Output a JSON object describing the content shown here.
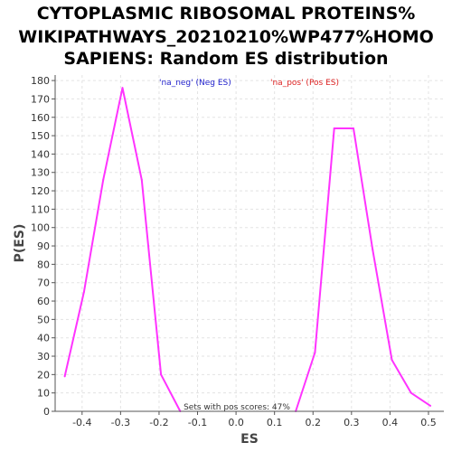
{
  "chart_data": {
    "type": "line",
    "title_lines": [
      "CYTOPLASMIC RIBOSOMAL PROTEINS%",
      "WIKIPATHWAYS_20210210%WP477%HOMO",
      "SAPIENS: Random ES distribution"
    ],
    "xlabel": "ES",
    "ylabel": "P(ES)",
    "xlim": [
      -0.47,
      0.54
    ],
    "ylim": [
      0,
      183
    ],
    "x_ticks": [
      -0.4,
      -0.3,
      -0.2,
      -0.1,
      0.0,
      0.1,
      0.2,
      0.3,
      0.4,
      0.5
    ],
    "x_tick_labels": [
      "-0.4",
      "-0.3",
      "-0.2",
      "-0.1",
      "0.0",
      "0.1",
      "0.2",
      "0.3",
      "0.4",
      "0.5"
    ],
    "y_ticks": [
      0,
      10,
      20,
      30,
      40,
      50,
      60,
      70,
      80,
      90,
      100,
      110,
      120,
      130,
      140,
      150,
      160,
      170,
      180
    ],
    "grid": true,
    "line_color": "#ff33ff",
    "series": [
      {
        "x": [
          -0.445,
          -0.395,
          -0.345,
          -0.295,
          -0.245,
          -0.195,
          -0.145
        ],
        "y": [
          19,
          65,
          126,
          176,
          126,
          20,
          0
        ]
      },
      {
        "x": [
          0.155,
          0.205,
          0.255,
          0.305,
          0.355,
          0.405,
          0.455,
          0.505
        ],
        "y": [
          0,
          32,
          154,
          154,
          88,
          28,
          10,
          3
        ]
      }
    ],
    "legend": [
      {
        "label": "'na_neg' (Neg ES)",
        "color": "#2222cc"
      },
      {
        "label": "'na_pos' (Pos ES)",
        "color": "#dd2222"
      }
    ],
    "annotation": "Sets with pos scores: 47%"
  }
}
